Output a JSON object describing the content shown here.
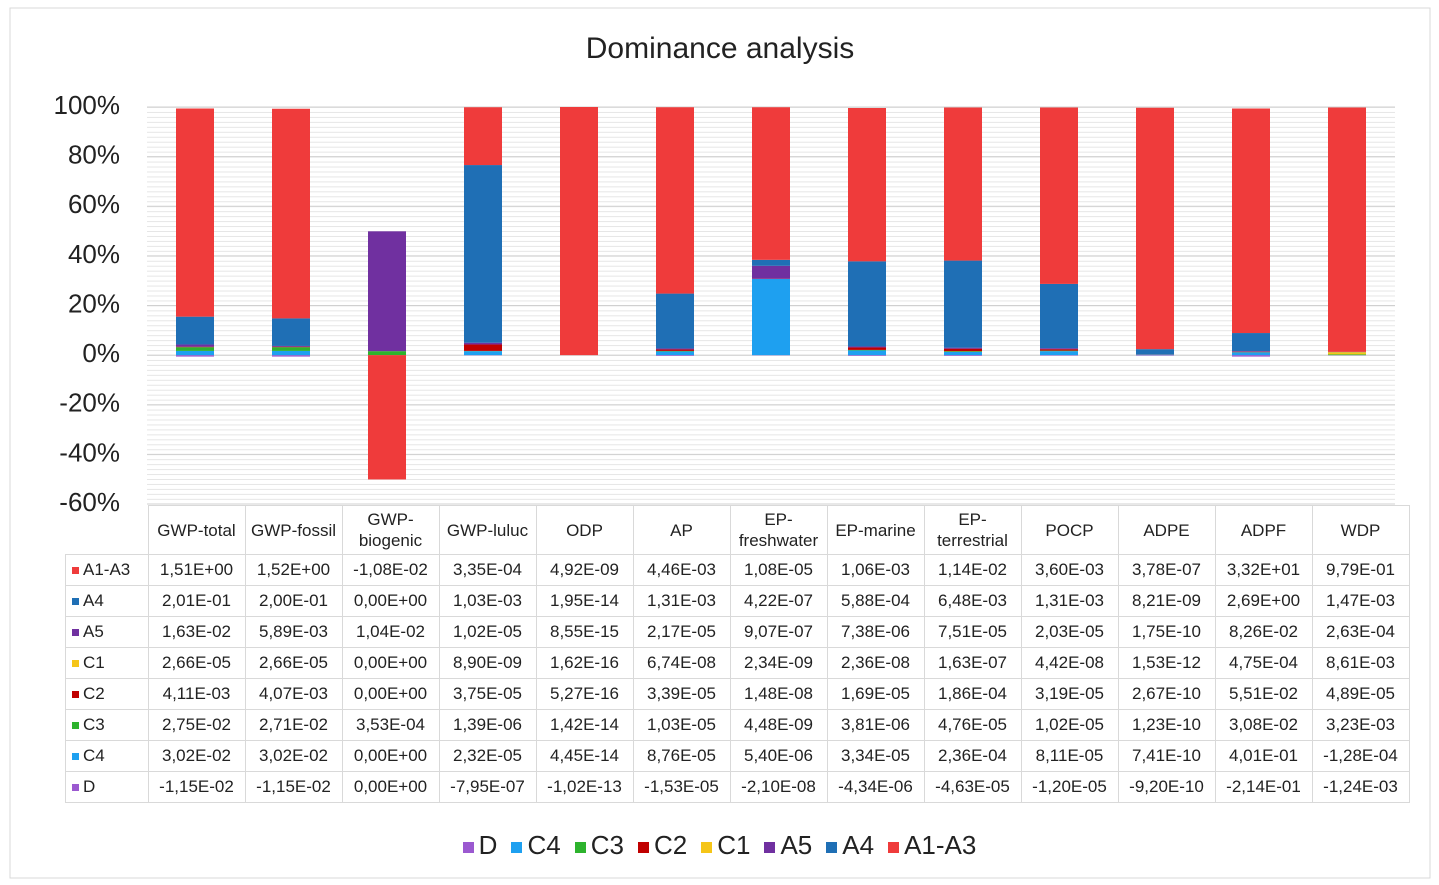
{
  "chart_data": {
    "type": "stacked_bar",
    "title": "Dominance analysis",
    "categories": [
      "GWP-total",
      "GWP-fossil",
      "GWP-biogenic",
      "GWP-luluc",
      "ODP",
      "AP",
      "EP-freshwater",
      "EP-marine",
      "EP-terrestrial",
      "POCP",
      "ADPE",
      "ADPF",
      "WDP"
    ],
    "series": [
      {
        "name": "A1-A3",
        "color": "#ef3b3b",
        "values": [
          83.9,
          84.5,
          -50.1,
          23.3,
          100,
          75.1,
          61.5,
          61.8,
          61.7,
          71.1,
          97.3,
          90.5,
          98.5
        ]
      },
      {
        "name": "A4",
        "color": "#1f6fb5",
        "values": [
          11.2,
          11.1,
          0,
          71.6,
          0,
          22.1,
          2.4,
          34.3,
          35.1,
          25.9,
          2.1,
          7.3,
          0.1
        ]
      },
      {
        "name": "A5",
        "color": "#7030a0",
        "values": [
          0.9,
          0.3,
          48.3,
          0.7,
          0,
          0.4,
          5.2,
          0.4,
          0.4,
          0.4,
          0,
          0.2,
          0
        ]
      },
      {
        "name": "C1",
        "color": "#f5c518",
        "values": [
          0,
          0,
          0,
          0,
          0,
          0,
          0,
          0,
          0,
          0,
          0,
          0,
          0.9
        ]
      },
      {
        "name": "C2",
        "color": "#c00000",
        "values": [
          0.2,
          0.2,
          0,
          2.6,
          0,
          0.6,
          0.1,
          1.0,
          1.0,
          0.6,
          0.1,
          0.2,
          0
        ]
      },
      {
        "name": "C3",
        "color": "#2db32d",
        "values": [
          1.5,
          1.5,
          1.6,
          0.1,
          0,
          0.2,
          0,
          0.2,
          0.3,
          0.2,
          0,
          0.1,
          0.3
        ]
      },
      {
        "name": "C4",
        "color": "#1ea0f0",
        "values": [
          1.7,
          1.7,
          0,
          1.6,
          0,
          1.5,
          30.7,
          1.9,
          1.3,
          1.6,
          0.2,
          1.1,
          0
        ]
      },
      {
        "name": "D",
        "color": "#9b59d0",
        "values": [
          -0.6,
          -0.6,
          0,
          -0.1,
          0,
          -0.3,
          -0.1,
          -0.3,
          -0.3,
          -0.2,
          -0.2,
          -0.6,
          -0.1
        ]
      }
    ],
    "ylim": [
      -60,
      100
    ],
    "yticks": [
      {
        "value": -60,
        "label": "-60%"
      },
      {
        "value": -40,
        "label": "-40%"
      },
      {
        "value": -20,
        "label": "-20%"
      },
      {
        "value": 0,
        "label": "0%"
      },
      {
        "value": 20,
        "label": "20%"
      },
      {
        "value": 40,
        "label": "40%"
      },
      {
        "value": 60,
        "label": "60%"
      },
      {
        "value": 80,
        "label": "80%"
      },
      {
        "value": 100,
        "label": "100%"
      }
    ],
    "grid": true,
    "data_table": {
      "rows": [
        [
          "1,51E+00",
          "1,52E+00",
          "-1,08E-02",
          "3,35E-04",
          "4,92E-09",
          "4,46E-03",
          "1,08E-05",
          "1,06E-03",
          "1,14E-02",
          "3,60E-03",
          "3,78E-07",
          "3,32E+01",
          "9,79E-01"
        ],
        [
          "2,01E-01",
          "2,00E-01",
          "0,00E+00",
          "1,03E-03",
          "1,95E-14",
          "1,31E-03",
          "4,22E-07",
          "5,88E-04",
          "6,48E-03",
          "1,31E-03",
          "8,21E-09",
          "2,69E+00",
          "1,47E-03"
        ],
        [
          "1,63E-02",
          "5,89E-03",
          "1,04E-02",
          "1,02E-05",
          "8,55E-15",
          "2,17E-05",
          "9,07E-07",
          "7,38E-06",
          "7,51E-05",
          "2,03E-05",
          "1,75E-10",
          "8,26E-02",
          "2,63E-04"
        ],
        [
          "2,66E-05",
          "2,66E-05",
          "0,00E+00",
          "8,90E-09",
          "1,62E-16",
          "6,74E-08",
          "2,34E-09",
          "2,36E-08",
          "1,63E-07",
          "4,42E-08",
          "1,53E-12",
          "4,75E-04",
          "8,61E-03"
        ],
        [
          "4,11E-03",
          "4,07E-03",
          "0,00E+00",
          "3,75E-05",
          "5,27E-16",
          "3,39E-05",
          "1,48E-08",
          "1,69E-05",
          "1,86E-04",
          "3,19E-05",
          "2,67E-10",
          "5,51E-02",
          "4,89E-05"
        ],
        [
          "2,75E-02",
          "2,71E-02",
          "3,53E-04",
          "1,39E-06",
          "1,42E-14",
          "1,03E-05",
          "4,48E-09",
          "3,81E-06",
          "4,76E-05",
          "1,02E-05",
          "1,23E-10",
          "3,08E-02",
          "3,23E-03"
        ],
        [
          "3,02E-02",
          "3,02E-02",
          "0,00E+00",
          "2,32E-05",
          "4,45E-14",
          "8,76E-05",
          "5,40E-06",
          "3,34E-05",
          "2,36E-04",
          "8,11E-05",
          "7,41E-10",
          "4,01E-01",
          "-1,28E-04"
        ],
        [
          "-1,15E-02",
          "-1,15E-02",
          "0,00E+00",
          "-7,95E-07",
          "-1,02E-13",
          "-1,53E-05",
          "-2,10E-08",
          "-4,34E-06",
          "-4,63E-05",
          "-1,20E-05",
          "-9,20E-10",
          "-2,14E-01",
          "-1,24E-03"
        ]
      ]
    }
  }
}
